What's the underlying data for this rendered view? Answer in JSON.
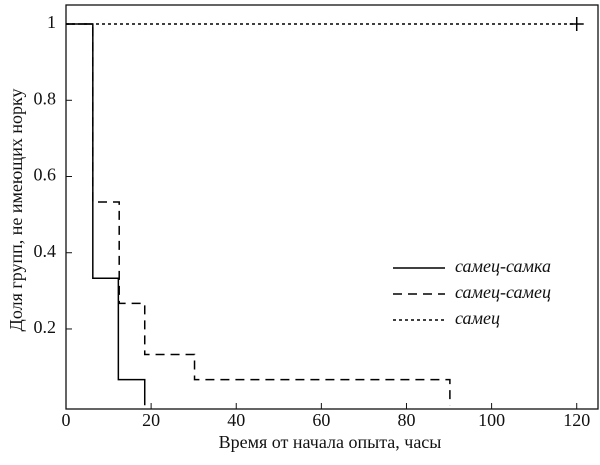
{
  "chart_data": {
    "type": "step",
    "x_label": "Время от начала опыта, часы",
    "y_label": "Доля групп, не имеющих норку",
    "xlim": [
      0,
      125
    ],
    "xticks": [
      0,
      20,
      40,
      60,
      80,
      100,
      120
    ],
    "ylim": [
      -0.01,
      1.05
    ],
    "yticks": [
      0.2,
      0.4,
      0.6,
      0.8,
      1
    ],
    "series": [
      {
        "name": "самец-самка",
        "color": "#000000",
        "dash": "solid",
        "x": [
          0,
          6.3,
          12.3,
          18.5
        ],
        "values": [
          1,
          0.333,
          0.067,
          0
        ]
      },
      {
        "name": "самец-самец",
        "color": "#000000",
        "dash": "dashed",
        "x": [
          0,
          6.3,
          12.5,
          18.5,
          30.2,
          90.2
        ],
        "values": [
          1,
          0.533,
          0.267,
          0.133,
          0.067,
          0
        ]
      },
      {
        "name": "самец",
        "color": "#000000",
        "dash": "dotted",
        "x": [
          0,
          120
        ],
        "values": [
          1,
          1
        ],
        "end_marker": "+"
      }
    ]
  }
}
